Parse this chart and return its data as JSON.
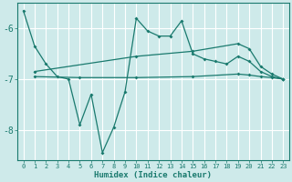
{
  "xlabel": "Humidex (Indice chaleur)",
  "background_color": "#ceeaea",
  "grid_color": "#ffffff",
  "line_color": "#1a7a6e",
  "xlim": [
    -0.5,
    23.5
  ],
  "ylim": [
    -8.6,
    -5.5
  ],
  "yticks": [
    -8,
    -7,
    -6
  ],
  "xticks": [
    0,
    1,
    2,
    3,
    4,
    5,
    6,
    7,
    8,
    9,
    10,
    11,
    12,
    13,
    14,
    15,
    16,
    17,
    18,
    19,
    20,
    21,
    22,
    23
  ],
  "series1": [
    [
      0,
      -5.65
    ],
    [
      1,
      -6.35
    ],
    [
      2,
      -6.7
    ],
    [
      3,
      -6.95
    ],
    [
      4,
      -7.0
    ],
    [
      5,
      -7.9
    ],
    [
      6,
      -7.3
    ],
    [
      7,
      -8.45
    ],
    [
      8,
      -7.95
    ],
    [
      9,
      -7.25
    ],
    [
      10,
      -5.8
    ],
    [
      11,
      -6.05
    ],
    [
      12,
      -6.15
    ],
    [
      13,
      -6.15
    ],
    [
      14,
      -5.85
    ],
    [
      15,
      -6.5
    ],
    [
      16,
      -6.6
    ],
    [
      17,
      -6.65
    ],
    [
      18,
      -6.7
    ],
    [
      19,
      -6.55
    ],
    [
      20,
      -6.65
    ],
    [
      21,
      -6.85
    ],
    [
      22,
      -6.95
    ],
    [
      23,
      -7.0
    ]
  ],
  "series2": [
    [
      1,
      -6.85
    ],
    [
      10,
      -6.55
    ],
    [
      15,
      -6.45
    ],
    [
      19,
      -6.3
    ],
    [
      20,
      -6.4
    ],
    [
      21,
      -6.75
    ],
    [
      22,
      -6.9
    ],
    [
      23,
      -7.0
    ]
  ],
  "series3": [
    [
      1,
      -6.95
    ],
    [
      5,
      -6.97
    ],
    [
      10,
      -6.97
    ],
    [
      15,
      -6.95
    ],
    [
      19,
      -6.9
    ],
    [
      20,
      -6.92
    ],
    [
      21,
      -6.95
    ],
    [
      22,
      -6.97
    ],
    [
      23,
      -7.0
    ]
  ]
}
